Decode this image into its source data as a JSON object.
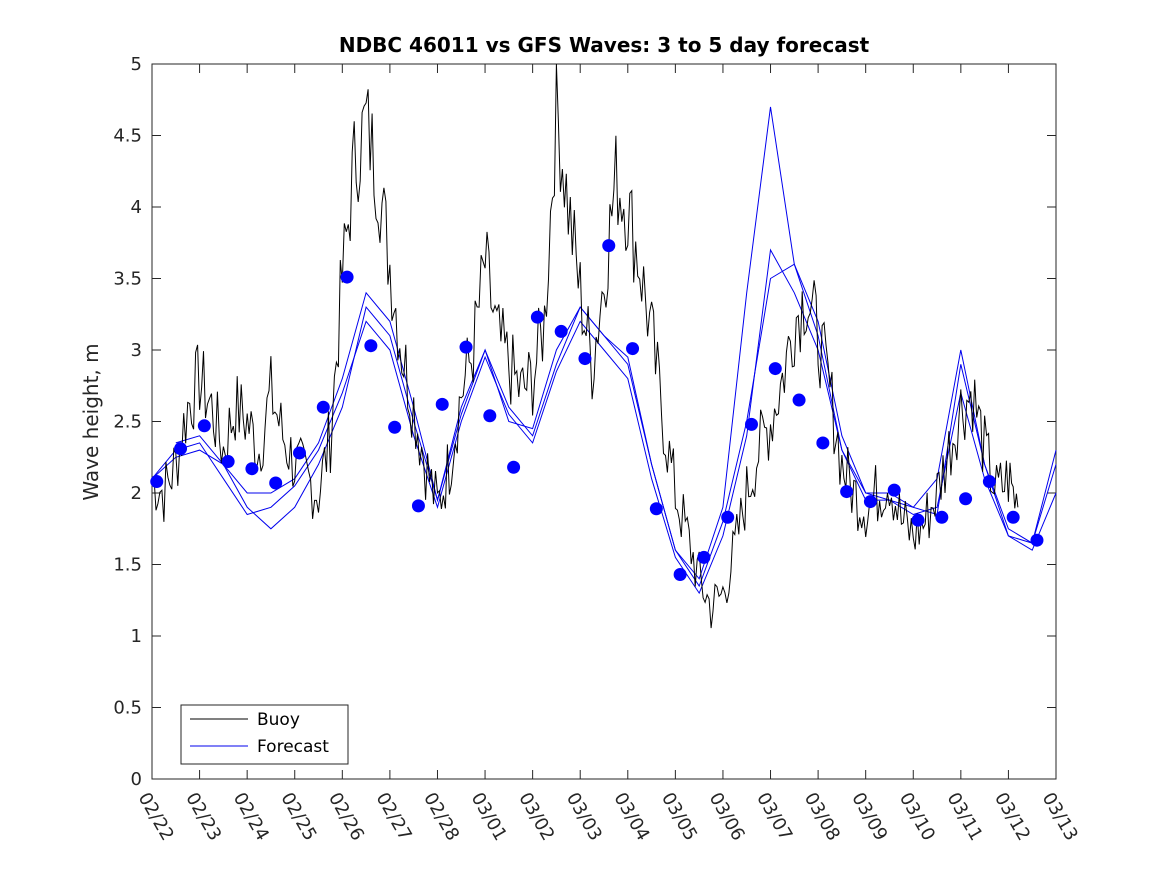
{
  "chart_data": {
    "type": "line",
    "title": "NDBC 46011 vs GFS Waves: 3 to 5 day forecast",
    "xlabel": "",
    "ylabel": "Wave height, m",
    "xlim": [
      0,
      19
    ],
    "ylim": [
      0,
      5
    ],
    "yticks": [
      0,
      0.5,
      1,
      1.5,
      2,
      2.5,
      3,
      3.5,
      4,
      4.5,
      5
    ],
    "ytick_labels": [
      "0",
      "0.5",
      "1",
      "1.5",
      "2",
      "2.5",
      "3",
      "3.5",
      "4",
      "4.5",
      "5"
    ],
    "xtick_labels": [
      "02/22",
      "02/23",
      "02/24",
      "02/25",
      "02/26",
      "02/27",
      "02/28",
      "03/01",
      "03/02",
      "03/03",
      "03/04",
      "03/05",
      "03/06",
      "03/07",
      "03/08",
      "03/09",
      "03/10",
      "03/11",
      "03/12",
      "03/13"
    ],
    "x_unit": "days since 02/22 00:00",
    "legend": {
      "position": "bottom-left",
      "entries": [
        "Buoy",
        "Forecast"
      ]
    },
    "colors": {
      "buoy": "#000000",
      "forecast": "#0000ee",
      "markers": "#0000ff"
    },
    "series": [
      {
        "name": "Buoy",
        "color": "#000000",
        "x": [
          0,
          0.25,
          0.5,
          0.75,
          1,
          1.25,
          1.5,
          1.75,
          2,
          2.25,
          2.5,
          2.75,
          3,
          3.25,
          3.5,
          3.75,
          4,
          4.25,
          4.5,
          4.75,
          5,
          5.25,
          5.5,
          5.75,
          6,
          6.25,
          6.5,
          6.75,
          7,
          7.25,
          7.5,
          7.75,
          8,
          8.25,
          8.5,
          8.75,
          9,
          9.25,
          9.5,
          9.75,
          10,
          10.25,
          10.5,
          10.75,
          11,
          11.25,
          11.5,
          11.75,
          12,
          12.25,
          12.5,
          12.75,
          13,
          13.25,
          13.5,
          13.75,
          14,
          14.25,
          14.5,
          14.75,
          15,
          15.25,
          15.5,
          15.75,
          16,
          16.25,
          16.5,
          16.75,
          17,
          17.25,
          17.5,
          17.75,
          18,
          18.2
        ],
        "values": [
          2.1,
          2.0,
          2.2,
          2.6,
          2.8,
          2.6,
          2.3,
          2.6,
          2.5,
          2.3,
          2.7,
          2.4,
          2.2,
          2.1,
          2.0,
          2.4,
          3.5,
          4.3,
          4.6,
          4.2,
          3.6,
          3.0,
          2.6,
          2.2,
          1.9,
          2.2,
          2.7,
          3.0,
          3.6,
          3.1,
          2.9,
          2.7,
          2.8,
          3.2,
          4.7,
          4.0,
          3.4,
          2.9,
          3.5,
          4.2,
          4.0,
          3.6,
          3.1,
          2.5,
          2.0,
          1.7,
          1.4,
          1.2,
          1.3,
          1.6,
          2.0,
          2.3,
          2.5,
          2.8,
          3.2,
          3.4,
          3.1,
          2.7,
          2.2,
          2.0,
          1.9,
          2.0,
          2.1,
          1.8,
          1.7,
          1.8,
          2.0,
          2.3,
          2.6,
          2.7,
          2.3,
          2.0,
          2.1,
          1.9
        ]
      },
      {
        "name": "Forecast",
        "color": "#0000ee",
        "runs": [
          {
            "x": [
              0,
              0.5,
              1,
              1.5,
              2,
              2.5,
              3,
              3.5,
              4,
              4.5,
              5,
              5.5,
              6,
              6.5,
              7,
              7.5,
              8,
              8.5,
              9,
              9.5,
              10,
              10.5,
              11,
              11.5,
              12,
              12.5,
              13,
              13.5,
              14,
              14.5,
              15,
              15.5,
              16,
              16.5,
              17,
              17.5,
              18,
              18.5,
              19
            ],
            "values": [
              2.1,
              2.25,
              2.3,
              2.2,
              1.9,
              1.75,
              1.9,
              2.2,
              2.6,
              3.3,
              3.1,
              2.5,
              1.95,
              2.6,
              3.0,
              2.6,
              2.4,
              2.9,
              3.3,
              3.1,
              2.9,
              2.2,
              1.6,
              1.35,
              1.8,
              2.5,
              3.5,
              3.6,
              3.2,
              2.4,
              2.0,
              2.0,
              1.9,
              1.85,
              2.9,
              2.2,
              1.75,
              1.65,
              2.2
            ]
          },
          {
            "x": [
              0,
              0.5,
              1,
              1.5,
              2,
              2.5,
              3,
              3.5,
              4,
              4.5,
              5,
              5.5,
              6,
              6.5,
              7,
              7.5,
              8,
              8.5,
              9,
              9.5,
              10,
              10.5,
              11,
              11.5,
              12,
              12.5,
              13,
              13.5,
              14,
              14.5,
              15,
              15.5,
              16,
              16.5,
              17,
              17.5,
              18,
              18.5,
              19
            ],
            "values": [
              2.1,
              2.3,
              2.35,
              2.1,
              1.85,
              1.9,
              2.05,
              2.3,
              2.7,
              3.2,
              3.0,
              2.4,
              1.9,
              2.5,
              2.95,
              2.55,
              2.35,
              2.85,
              3.2,
              3.0,
              2.8,
              2.1,
              1.55,
              1.3,
              1.7,
              2.4,
              3.7,
              3.4,
              3.0,
              2.3,
              1.95,
              1.95,
              1.85,
              1.9,
              2.7,
              2.1,
              1.7,
              1.6,
              2.0
            ]
          },
          {
            "x": [
              0.5,
              1,
              1.5,
              2,
              2.5,
              3,
              3.5,
              4,
              4.5,
              5,
              5.5,
              6,
              6.5,
              7,
              7.5,
              8,
              8.5,
              9,
              9.5,
              10,
              10.5,
              11,
              11.5,
              12,
              12.5,
              13,
              13.5,
              14,
              14.5,
              15,
              15.5,
              16,
              16.5,
              17,
              17.5,
              18,
              18.5,
              19
            ],
            "values": [
              2.35,
              2.4,
              2.2,
              2.0,
              2.0,
              2.1,
              2.35,
              2.8,
              3.4,
              3.2,
              2.6,
              1.95,
              2.55,
              3.0,
              2.5,
              2.45,
              3.0,
              3.3,
              3.1,
              2.95,
              2.2,
              1.6,
              1.4,
              1.9,
              3.4,
              4.7,
              3.6,
              3.1,
              2.3,
              2.0,
              1.95,
              1.9,
              2.1,
              3.0,
              2.2,
              1.7,
              1.65,
              2.3
            ]
          }
        ]
      },
      {
        "name": "Forecast markers",
        "color": "#0000ff",
        "x": [
          0.1,
          0.6,
          1.1,
          1.6,
          2.1,
          2.6,
          3.1,
          3.6,
          4.1,
          4.6,
          5.1,
          5.6,
          6.1,
          6.6,
          7.1,
          7.6,
          8.1,
          8.6,
          9.1,
          9.6,
          10.1,
          10.6,
          11.1,
          11.6,
          12.1,
          12.6,
          13.1,
          13.6,
          14.1,
          14.6,
          15.1,
          15.6,
          16.1,
          16.6,
          17.1,
          17.6,
          18.1,
          18.6
        ],
        "values": [
          2.08,
          2.31,
          2.47,
          2.22,
          2.17,
          2.07,
          2.28,
          2.6,
          3.51,
          3.03,
          2.46,
          1.91,
          2.62,
          3.02,
          2.54,
          2.18,
          3.23,
          3.13,
          2.94,
          3.73,
          3.01,
          1.89,
          1.43,
          1.55,
          1.83,
          2.48,
          2.87,
          2.65,
          2.35,
          2.01,
          1.94,
          2.02,
          1.81,
          1.83,
          1.96,
          2.08,
          1.83,
          1.67
        ]
      }
    ]
  }
}
